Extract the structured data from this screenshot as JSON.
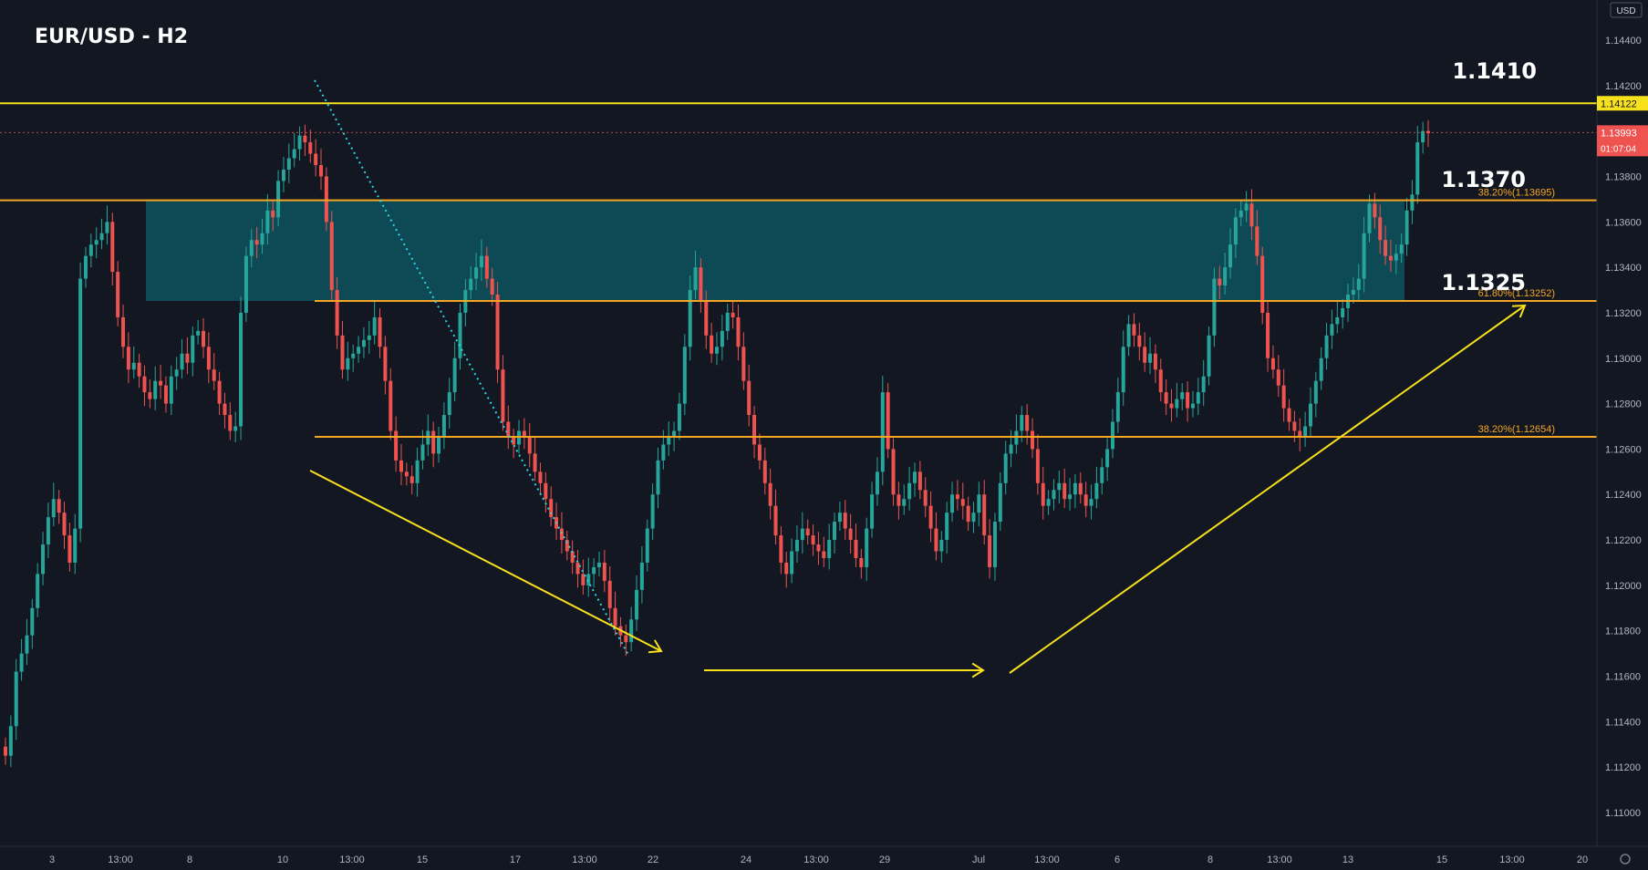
{
  "title": "EUR/USD - H2",
  "currency": "USD",
  "price_labels": {
    "resistance": "1.14122",
    "current": "1.13993",
    "countdown": "01:07:04"
  },
  "colors": {
    "background": "#131722",
    "up": "#26a69a",
    "down": "#ef5350",
    "resistance": "#f7e11c",
    "fib": "#f5a623",
    "zone": "#0e4f5c",
    "trend": "#f7e11c",
    "dotted": "#29d6e6"
  },
  "chart_data": {
    "type": "candlestick",
    "symbol": "EUR/USD",
    "timeframe": "H2",
    "y_axis": {
      "ticks": [
        "1.14400",
        "1.14200",
        "1.14000",
        "1.13800",
        "1.13600",
        "1.13400",
        "1.13200",
        "1.13000",
        "1.12800",
        "1.12600",
        "1.12400",
        "1.12200",
        "1.12000",
        "1.11800",
        "1.11600",
        "1.11400",
        "1.11200",
        "1.11000"
      ],
      "range": [
        1.108,
        1.1455
      ]
    },
    "x_axis": {
      "tick_labels": [
        "3",
        "13:00",
        "8",
        "10",
        "13:00",
        "15",
        "17",
        "13:00",
        "22",
        "24",
        "13:00",
        "29",
        "Jul",
        "13:00",
        "6",
        "8",
        "13:00",
        "13",
        "15",
        "13:00",
        "20"
      ]
    },
    "levels": [
      {
        "label": "1.1410",
        "value": 1.14122,
        "type": "resistance"
      },
      {
        "label": "1.1370",
        "value": 1.13695,
        "fib": "38.20%(1.13695)"
      },
      {
        "label": "1.1325",
        "value": 1.13252,
        "fib": "61.80%(1.13252)"
      },
      {
        "label": "",
        "value": 1.12654,
        "fib": "38.20%(1.12654)"
      }
    ],
    "zone": {
      "low": 1.13252,
      "high": 1.13695
    },
    "series_close": [
      1.1125,
      1.1138,
      1.1162,
      1.117,
      1.1178,
      1.119,
      1.1205,
      1.1218,
      1.123,
      1.1238,
      1.1232,
      1.1222,
      1.121,
      1.1225,
      1.1335,
      1.1345,
      1.135,
      1.1352,
      1.1355,
      1.136,
      1.1338,
      1.1318,
      1.1305,
      1.1295,
      1.1298,
      1.1292,
      1.1285,
      1.1282,
      1.129,
      1.1288,
      1.128,
      1.1292,
      1.1295,
      1.1302,
      1.1298,
      1.131,
      1.1312,
      1.1305,
      1.1295,
      1.129,
      1.128,
      1.1275,
      1.1268,
      1.127,
      1.132,
      1.1345,
      1.1352,
      1.135,
      1.1355,
      1.1365,
      1.1362,
      1.1378,
      1.1383,
      1.1388,
      1.1392,
      1.1398,
      1.1395,
      1.139,
      1.1385,
      1.138,
      1.136,
      1.133,
      1.131,
      1.1295,
      1.13,
      1.1302,
      1.1305,
      1.1308,
      1.131,
      1.1318,
      1.1305,
      1.129,
      1.1268,
      1.1255,
      1.125,
      1.1248,
      1.1245,
      1.1255,
      1.1262,
      1.1268,
      1.1258,
      1.1265,
      1.1275,
      1.1285,
      1.13,
      1.132,
      1.133,
      1.1335,
      1.134,
      1.1345,
      1.1335,
      1.1328,
      1.1295,
      1.1272,
      1.1265,
      1.1262,
      1.1268,
      1.1265,
      1.1258,
      1.125,
      1.1245,
      1.1238,
      1.123,
      1.1225,
      1.122,
      1.1215,
      1.121,
      1.1205,
      1.12,
      1.1205,
      1.1208,
      1.121,
      1.1202,
      1.119,
      1.1182,
      1.1178,
      1.1175,
      1.1185,
      1.1198,
      1.121,
      1.1225,
      1.124,
      1.1255,
      1.1262,
      1.1265,
      1.1268,
      1.128,
      1.1305,
      1.133,
      1.134,
      1.1325,
      1.131,
      1.1302,
      1.1305,
      1.1312,
      1.132,
      1.1318,
      1.1305,
      1.129,
      1.1275,
      1.1262,
      1.1255,
      1.1245,
      1.1235,
      1.1222,
      1.121,
      1.1205,
      1.1215,
      1.122,
      1.1225,
      1.1222,
      1.1218,
      1.1215,
      1.1212,
      1.122,
      1.1228,
      1.1232,
      1.1225,
      1.122,
      1.1212,
      1.1208,
      1.1225,
      1.124,
      1.125,
      1.1285,
      1.126,
      1.124,
      1.1235,
      1.1238,
      1.1245,
      1.125,
      1.1242,
      1.1235,
      1.1225,
      1.1215,
      1.122,
      1.1232,
      1.124,
      1.1238,
      1.1235,
      1.1228,
      1.1232,
      1.124,
      1.1222,
      1.1208,
      1.1228,
      1.1245,
      1.1258,
      1.1262,
      1.1268,
      1.1275,
      1.1268,
      1.126,
      1.1245,
      1.1235,
      1.1238,
      1.1242,
      1.1245,
      1.1238,
      1.124,
      1.1245,
      1.124,
      1.1235,
      1.1238,
      1.1245,
      1.1252,
      1.126,
      1.1272,
      1.1285,
      1.1305,
      1.1315,
      1.131,
      1.1305,
      1.1298,
      1.1302,
      1.1295,
      1.1285,
      1.128,
      1.1278,
      1.1282,
      1.1285,
      1.1278,
      1.128,
      1.1285,
      1.1292,
      1.131,
      1.1335,
      1.1332,
      1.134,
      1.135,
      1.1362,
      1.1365,
      1.1368,
      1.1358,
      1.1345,
      1.132,
      1.13,
      1.1295,
      1.1288,
      1.1278,
      1.1272,
      1.1268,
      1.1265,
      1.127,
      1.128,
      1.129,
      1.13,
      1.131,
      1.1315,
      1.1318,
      1.1322,
      1.1328,
      1.133,
      1.1335,
      1.1355,
      1.1368,
      1.1362,
      1.1352,
      1.1345,
      1.1343,
      1.1346,
      1.135,
      1.1365,
      1.1372,
      1.1395,
      1.14,
      1.1399
    ],
    "annotations": [
      "falling trendline",
      "sideways arrow",
      "rising trendline",
      "dotted trendline from high"
    ]
  }
}
